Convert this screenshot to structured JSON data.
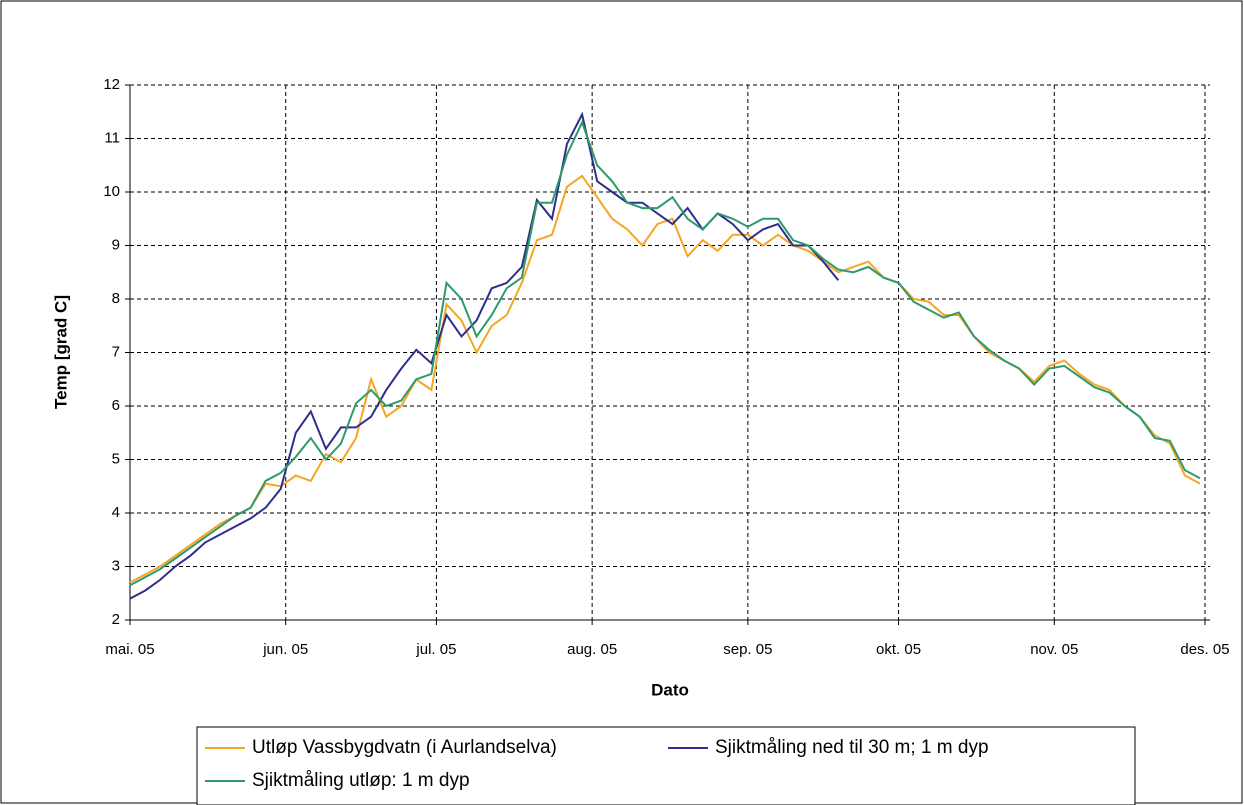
{
  "chart_data": {
    "type": "line",
    "ylabel": "Temp [grad C]",
    "xlabel": "Dato",
    "x": [
      0,
      3,
      6,
      9,
      12,
      15,
      18,
      21,
      24,
      27,
      30,
      33,
      36,
      39,
      42,
      45,
      48,
      51,
      54,
      57,
      60,
      63,
      66,
      69,
      72,
      75,
      78,
      81,
      84,
      87,
      90,
      93,
      96,
      99,
      102,
      105,
      108,
      111,
      114,
      117,
      120,
      123,
      126,
      129,
      132,
      135,
      138,
      141,
      144,
      147,
      150,
      153,
      156,
      159,
      162,
      165,
      168,
      171,
      174,
      177,
      180,
      183,
      186,
      189,
      192,
      195,
      198,
      201,
      204,
      207,
      210,
      213
    ],
    "series": [
      {
        "name": "Utløp Vassbygdvatn (i Aurlandselva)",
        "color": "#f5a623",
        "values": [
          2.7,
          2.85,
          3.0,
          3.2,
          3.4,
          3.6,
          3.8,
          3.95,
          4.1,
          4.55,
          4.5,
          4.7,
          4.6,
          5.1,
          4.95,
          5.4,
          6.5,
          5.8,
          6.0,
          6.5,
          6.3,
          7.9,
          7.6,
          7.0,
          7.5,
          7.7,
          8.3,
          9.1,
          9.2,
          10.1,
          10.3,
          9.9,
          9.5,
          9.3,
          9.0,
          9.4,
          9.5,
          8.8,
          9.1,
          8.9,
          9.2,
          9.2,
          9.0,
          9.2,
          9.0,
          8.9,
          8.7,
          8.5,
          8.6,
          8.7,
          8.4,
          8.3,
          8.0,
          7.95,
          7.7,
          7.7,
          7.3,
          7.0,
          6.85,
          6.7,
          6.45,
          6.75,
          6.85,
          6.6,
          6.4,
          6.3,
          6.0,
          5.8,
          5.45,
          5.3,
          4.7,
          4.55
        ]
      },
      {
        "name": "Sjiktmåling ned til 30 m; 1 m dyp",
        "color": "#2e2e8c",
        "values": [
          2.4,
          2.55,
          2.75,
          3.0,
          3.2,
          3.45,
          3.6,
          3.75,
          3.9,
          4.1,
          4.45,
          5.5,
          5.9,
          5.2,
          5.6,
          5.6,
          5.8,
          6.3,
          6.7,
          7.05,
          6.8,
          7.7,
          7.3,
          7.6,
          8.2,
          8.3,
          8.6,
          9.85,
          9.5,
          10.9,
          11.45,
          10.2,
          10.0,
          9.8,
          9.8,
          9.6,
          9.4,
          9.7,
          9.3,
          9.6,
          9.4,
          9.1,
          9.3,
          9.4,
          9.0,
          9.0,
          8.7,
          8.35,
          null,
          null,
          null,
          null,
          null,
          null,
          null,
          null,
          null,
          null,
          null,
          null,
          null,
          null,
          null,
          null,
          null,
          null,
          null,
          null,
          null,
          null,
          null,
          null
        ]
      },
      {
        "name": "Sjiktmåling utløp: 1 m dyp",
        "color": "#2e9a6a",
        "values": [
          2.65,
          2.8,
          2.95,
          3.15,
          3.35,
          3.55,
          3.75,
          3.95,
          4.1,
          4.6,
          4.75,
          5.05,
          5.4,
          5.0,
          5.3,
          6.05,
          6.3,
          6.0,
          6.1,
          6.5,
          6.6,
          8.3,
          8.0,
          7.3,
          7.7,
          8.2,
          8.4,
          9.8,
          9.8,
          10.7,
          11.3,
          10.5,
          10.2,
          9.8,
          9.7,
          9.7,
          9.9,
          9.5,
          9.3,
          9.6,
          9.5,
          9.35,
          9.5,
          9.5,
          9.1,
          9.0,
          8.75,
          8.55,
          8.5,
          8.6,
          8.4,
          8.3,
          7.95,
          7.8,
          7.65,
          7.75,
          7.3,
          7.05,
          6.85,
          6.7,
          6.4,
          6.7,
          6.75,
          6.55,
          6.35,
          6.25,
          6.0,
          5.8,
          5.4,
          5.35,
          4.8,
          4.65
        ]
      }
    ],
    "xlim": [
      0,
      215
    ],
    "xticks": [
      {
        "value": 0,
        "label": "mai. 05"
      },
      {
        "value": 31,
        "label": "jun. 05"
      },
      {
        "value": 61,
        "label": "jul. 05"
      },
      {
        "value": 92,
        "label": "aug. 05"
      },
      {
        "value": 123,
        "label": "sep. 05"
      },
      {
        "value": 153,
        "label": "okt. 05"
      },
      {
        "value": 184,
        "label": "nov. 05"
      },
      {
        "value": 214,
        "label": "des. 05"
      }
    ],
    "ylim": [
      2,
      12
    ],
    "yticks": [
      2,
      3,
      4,
      5,
      6,
      7,
      8,
      9,
      10,
      11,
      12
    ],
    "grid": true
  }
}
